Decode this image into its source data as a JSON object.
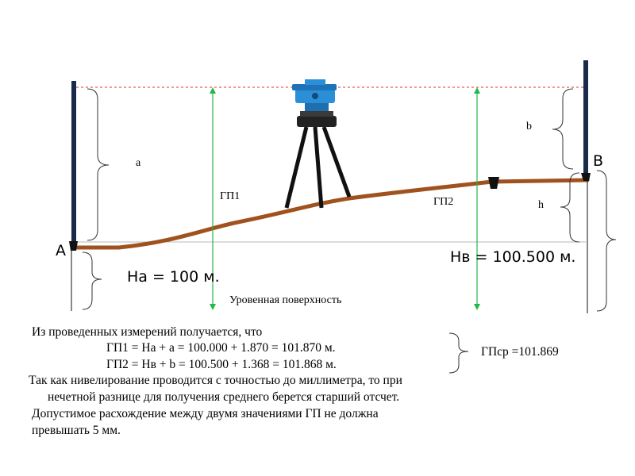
{
  "diagram": {
    "point_a": "A",
    "point_b": "B",
    "label_a": "a",
    "label_b": "b",
    "label_h": "h",
    "gp1": "ГП1",
    "gp2": "ГП2",
    "ha": "На = 100 м.",
    "hb": "Нв = 100.500 м.",
    "level_surface": "Уровенная поверхность"
  },
  "text": {
    "intro": "Из проведенных измерений получается, что",
    "formula1": "ГП1 = На + a = 100.000 + 1.870 = 101.870 м.",
    "formula2": "ГП2 = Нв + b = 100.500 + 1.368 = 101.868 м.",
    "gp_avg": "ГПср =101.869",
    "para1_line1": " Так как нивелирование проводится с точностью до миллиметра, то при",
    "para1_line2": "нечетной разнице для получения среднего берется старший отсчет.",
    "para2_line1": "Допустимое расхождение между двумя значениями ГП не должна",
    "para2_line2": "превышать 5 мм."
  },
  "colors": {
    "terrain": "#a0521e",
    "dimension": "#22b84a",
    "sightline": "#e03030",
    "instrument": "#2a8fd6",
    "staff": "#1a2a4a"
  }
}
